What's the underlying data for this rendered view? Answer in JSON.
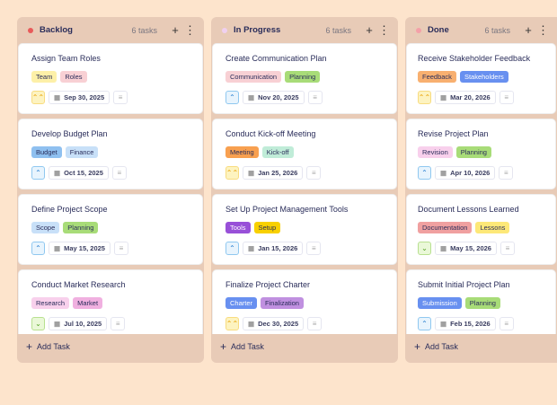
{
  "columns": [
    {
      "title": "Backlog",
      "count": "6 tasks",
      "dot": "#e85a5a",
      "add_label": "Add Task",
      "cards": [
        {
          "title": "Assign Team Roles",
          "tags": [
            {
              "label": "Team",
              "color": "#fdf0a8"
            },
            {
              "label": "Roles",
              "color": "#f8d0d4"
            }
          ],
          "priority": "high",
          "date": "Sep 30, 2025"
        },
        {
          "title": "Develop Budget Plan",
          "tags": [
            {
              "label": "Budget",
              "color": "#8fc0f0"
            },
            {
              "label": "Finance",
              "color": "#c8e0f8"
            }
          ],
          "priority": "medium",
          "date": "Oct 15, 2025"
        },
        {
          "title": "Define Project Scope",
          "tags": [
            {
              "label": "Scope",
              "color": "#c8e0f8"
            },
            {
              "label": "Planning",
              "color": "#a8dc78"
            }
          ],
          "priority": "medium",
          "date": "May 15, 2025"
        },
        {
          "title": "Conduct Market Research",
          "tags": [
            {
              "label": "Research",
              "color": "#f8d0ec"
            },
            {
              "label": "Market",
              "color": "#f0b0e0"
            }
          ],
          "priority": "low",
          "date": "Jul 10, 2025"
        }
      ]
    },
    {
      "title": "In Progress",
      "count": "6 tasks",
      "dot": "#f0d0f0",
      "add_label": "Add Task",
      "cards": [
        {
          "title": "Create Communication Plan",
          "tags": [
            {
              "label": "Communication",
              "color": "#f8d0d4"
            },
            {
              "label": "Planning",
              "color": "#a8dc78"
            }
          ],
          "priority": "medium",
          "date": "Nov 20, 2025"
        },
        {
          "title": "Conduct Kick-off Meeting",
          "tags": [
            {
              "label": "Meeting",
              "color": "#f8a050"
            },
            {
              "label": "Kick-off",
              "color": "#c0ecd8"
            }
          ],
          "priority": "high",
          "date": "Jan 25, 2026"
        },
        {
          "title": "Set Up Project Management Tools",
          "tags": [
            {
              "label": "Tools",
              "color": "#9850d8",
              "text": "#ffffff"
            },
            {
              "label": "Setup",
              "color": "#f8d000"
            }
          ],
          "priority": "medium",
          "date": "Jan 15, 2026"
        },
        {
          "title": "Finalize Project Charter",
          "tags": [
            {
              "label": "Charter",
              "color": "#6890f0",
              "text": "#ffffff"
            },
            {
              "label": "Finalization",
              "color": "#c090e0"
            }
          ],
          "priority": "high",
          "date": "Dec 30, 2025"
        }
      ]
    },
    {
      "title": "Done",
      "count": "6 tasks",
      "dot": "#f4a0a8",
      "add_label": "Add Task",
      "cards": [
        {
          "title": "Receive Stakeholder Feedback",
          "tags": [
            {
              "label": "Feedback",
              "color": "#f8b070"
            },
            {
              "label": "Stakeholders",
              "color": "#6890f0",
              "text": "#ffffff"
            }
          ],
          "priority": "high",
          "date": "Mar 20, 2026"
        },
        {
          "title": "Revise Project Plan",
          "tags": [
            {
              "label": "Revision",
              "color": "#f8d0ec"
            },
            {
              "label": "Planning",
              "color": "#a8dc78"
            }
          ],
          "priority": "medium",
          "date": "Apr 10, 2026"
        },
        {
          "title": "Document Lessons Learned",
          "tags": [
            {
              "label": "Documentation",
              "color": "#f0a0a0"
            },
            {
              "label": "Lessons",
              "color": "#fde878"
            }
          ],
          "priority": "low",
          "date": "May 15, 2026"
        },
        {
          "title": "Submit Initial Project Plan",
          "tags": [
            {
              "label": "Submission",
              "color": "#6890f0",
              "text": "#ffffff"
            },
            {
              "label": "Planning",
              "color": "#a8dc78"
            }
          ],
          "priority": "medium",
          "date": "Feb 15, 2026"
        }
      ]
    }
  ]
}
